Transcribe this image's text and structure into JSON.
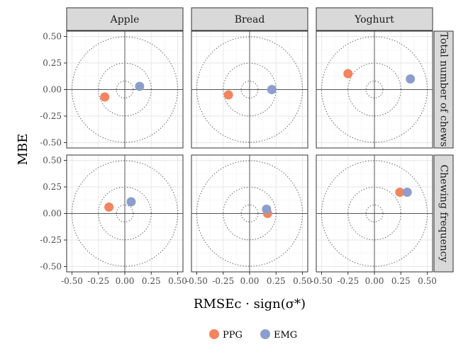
{
  "chart_data": {
    "type": "scatter",
    "xlabel": "RMSEc · sign(σ*)",
    "ylabel": "MBE",
    "xlim": [
      -0.55,
      0.55
    ],
    "ylim": [
      -0.55,
      0.55
    ],
    "x_ticks": [
      "-0.50",
      "-0.25",
      "0.00",
      "0.25",
      "0.50"
    ],
    "y_ticks": [
      "0.50",
      "0.25",
      "0.00",
      "-0.25",
      "-0.50"
    ],
    "column_facets": [
      "Apple",
      "Bread",
      "Yoghurt"
    ],
    "row_facets": [
      "Total number of chews",
      "Chewing frequency"
    ],
    "circle_radii": [
      0.08,
      0.25,
      0.5
    ],
    "grid": true,
    "legend_position": "bottom",
    "series": [
      {
        "name": "PPG",
        "color": "#F4845F",
        "points": [
          {
            "row": 0,
            "col": 0,
            "x": -0.19,
            "y": -0.07
          },
          {
            "row": 0,
            "col": 1,
            "x": -0.2,
            "y": -0.05
          },
          {
            "row": 0,
            "col": 2,
            "x": -0.25,
            "y": 0.15
          },
          {
            "row": 1,
            "col": 0,
            "x": -0.15,
            "y": 0.06
          },
          {
            "row": 1,
            "col": 1,
            "x": 0.17,
            "y": 0.0
          },
          {
            "row": 1,
            "col": 2,
            "x": 0.24,
            "y": 0.2
          }
        ]
      },
      {
        "name": "EMG",
        "color": "#8C9FCC",
        "points": [
          {
            "row": 0,
            "col": 0,
            "x": 0.14,
            "y": 0.03
          },
          {
            "row": 0,
            "col": 1,
            "x": 0.21,
            "y": 0.0
          },
          {
            "row": 0,
            "col": 2,
            "x": 0.34,
            "y": 0.1
          },
          {
            "row": 1,
            "col": 0,
            "x": 0.06,
            "y": 0.11
          },
          {
            "row": 1,
            "col": 1,
            "x": 0.16,
            "y": 0.04
          },
          {
            "row": 1,
            "col": 2,
            "x": 0.31,
            "y": 0.2
          }
        ]
      }
    ]
  }
}
